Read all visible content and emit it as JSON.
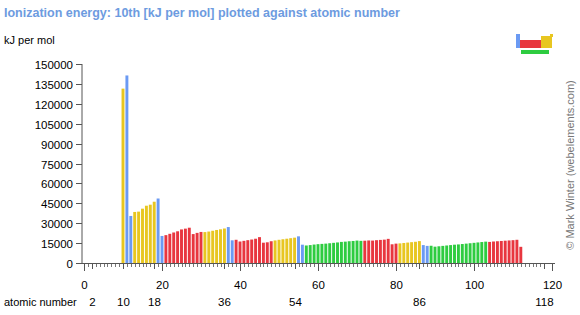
{
  "chart_data": {
    "type": "bar",
    "title": "Ionization energy: 10th [kJ per mol] plotted against atomic number",
    "y_label": "kJ per mol",
    "x_label": "atomic number",
    "credit": "© Mark Winter (webelements.com)",
    "x": [
      1,
      2,
      3,
      4,
      5,
      6,
      7,
      8,
      9,
      10,
      11,
      12,
      13,
      14,
      15,
      16,
      17,
      18,
      19,
      20,
      21,
      22,
      23,
      24,
      25,
      26,
      27,
      28,
      29,
      30,
      31,
      32,
      33,
      34,
      35,
      36,
      37,
      38,
      39,
      40,
      41,
      42,
      43,
      44,
      45,
      46,
      47,
      48,
      49,
      50,
      51,
      52,
      53,
      54,
      55,
      56,
      57,
      58,
      59,
      60,
      61,
      62,
      63,
      64,
      65,
      66,
      67,
      68,
      69,
      70,
      71,
      72,
      73,
      74,
      75,
      76,
      77,
      78,
      79,
      80,
      81,
      82,
      83,
      84,
      85,
      86,
      87,
      88,
      89,
      90,
      91,
      92,
      93,
      94,
      95,
      96,
      97,
      98,
      99,
      100,
      101,
      102,
      103,
      104,
      105,
      106,
      107,
      108,
      109,
      110,
      111,
      112,
      113,
      114,
      115,
      116,
      117,
      118
    ],
    "values": [
      null,
      null,
      null,
      null,
      null,
      null,
      null,
      null,
      null,
      131432,
      141362,
      35458,
      38473,
      38726,
      40950,
      43177,
      43961,
      46186,
      48610,
      20385,
      21000,
      22000,
      23000,
      23900,
      25300,
      25900,
      26600,
      21800,
      22700,
      23400,
      23300,
      23700,
      24300,
      24900,
      25400,
      26000,
      27100,
      17100,
      17500,
      16200,
      16700,
      17200,
      17700,
      18300,
      19500,
      15300,
      15600,
      16400,
      17000,
      17500,
      17900,
      18300,
      18700,
      19100,
      20100,
      13800,
      13200,
      13500,
      13900,
      14200,
      14400,
      14600,
      14900,
      15200,
      15500,
      15900,
      16100,
      16400,
      16600,
      16900,
      16700,
      16800,
      17000,
      16900,
      17200,
      17400,
      17600,
      18200,
      14100,
      14600,
      14800,
      15100,
      15400,
      15700,
      16000,
      16500,
      13500,
      12900,
      13000,
      12300,
      12600,
      12900,
      13200,
      13500,
      13800,
      14000,
      14300,
      14600,
      14900,
      15200,
      15500,
      15800,
      16100,
      15900,
      16200,
      16400,
      16600,
      16800,
      17000,
      17200,
      17500,
      12200,
      null,
      null,
      null,
      null,
      null,
      null
    ],
    "colors": [
      "#6b9af3",
      "#6b9af3",
      "#6b9af3",
      "#6b9af3",
      "#e8c620",
      "#e8c620",
      "#e8c620",
      "#e8c620",
      "#e8c620",
      "#e8c620",
      "#6b9af3",
      "#6b9af3",
      "#e8c620",
      "#e8c620",
      "#e8c620",
      "#e8c620",
      "#e8c620",
      "#e8c620",
      "#6b9af3",
      "#6b9af3",
      "#e8363f",
      "#e8363f",
      "#e8363f",
      "#e8363f",
      "#e8363f",
      "#e8363f",
      "#e8363f",
      "#e8363f",
      "#e8363f",
      "#e8363f",
      "#e8c620",
      "#e8c620",
      "#e8c620",
      "#e8c620",
      "#e8c620",
      "#e8c620",
      "#6b9af3",
      "#6b9af3",
      "#e8363f",
      "#e8363f",
      "#e8363f",
      "#e8363f",
      "#e8363f",
      "#e8363f",
      "#e8363f",
      "#e8363f",
      "#e8363f",
      "#e8363f",
      "#e8c620",
      "#e8c620",
      "#e8c620",
      "#e8c620",
      "#e8c620",
      "#e8c620",
      "#6b9af3",
      "#6b9af3",
      "#2ecc40",
      "#2ecc40",
      "#2ecc40",
      "#2ecc40",
      "#2ecc40",
      "#2ecc40",
      "#2ecc40",
      "#2ecc40",
      "#2ecc40",
      "#2ecc40",
      "#2ecc40",
      "#2ecc40",
      "#2ecc40",
      "#2ecc40",
      "#2ecc40",
      "#e8363f",
      "#e8363f",
      "#e8363f",
      "#e8363f",
      "#e8363f",
      "#e8363f",
      "#e8363f",
      "#e8363f",
      "#e8363f",
      "#e8c620",
      "#e8c620",
      "#e8c620",
      "#e8c620",
      "#e8c620",
      "#e8c620",
      "#6b9af3",
      "#6b9af3",
      "#2ecc40",
      "#2ecc40",
      "#2ecc40",
      "#2ecc40",
      "#2ecc40",
      "#2ecc40",
      "#2ecc40",
      "#2ecc40",
      "#2ecc40",
      "#2ecc40",
      "#2ecc40",
      "#2ecc40",
      "#2ecc40",
      "#2ecc40",
      "#2ecc40",
      "#e8363f",
      "#e8363f",
      "#e8363f",
      "#e8363f",
      "#e8363f",
      "#e8363f",
      "#e8363f",
      "#e8363f",
      "#e8363f",
      "#e8c620",
      "#e8c620",
      "#e8c620",
      "#e8c620",
      "#e8c620",
      "#e8c620"
    ],
    "xlim": [
      0,
      120
    ],
    "xticks": [
      0,
      2,
      10,
      18,
      20,
      36,
      40,
      54,
      60,
      80,
      86,
      100,
      118,
      120
    ],
    "ylim": [
      0,
      150000
    ],
    "yticks": [
      0,
      15000,
      30000,
      45000,
      60000,
      75000,
      90000,
      105000,
      120000,
      135000,
      150000
    ],
    "grid": false
  }
}
